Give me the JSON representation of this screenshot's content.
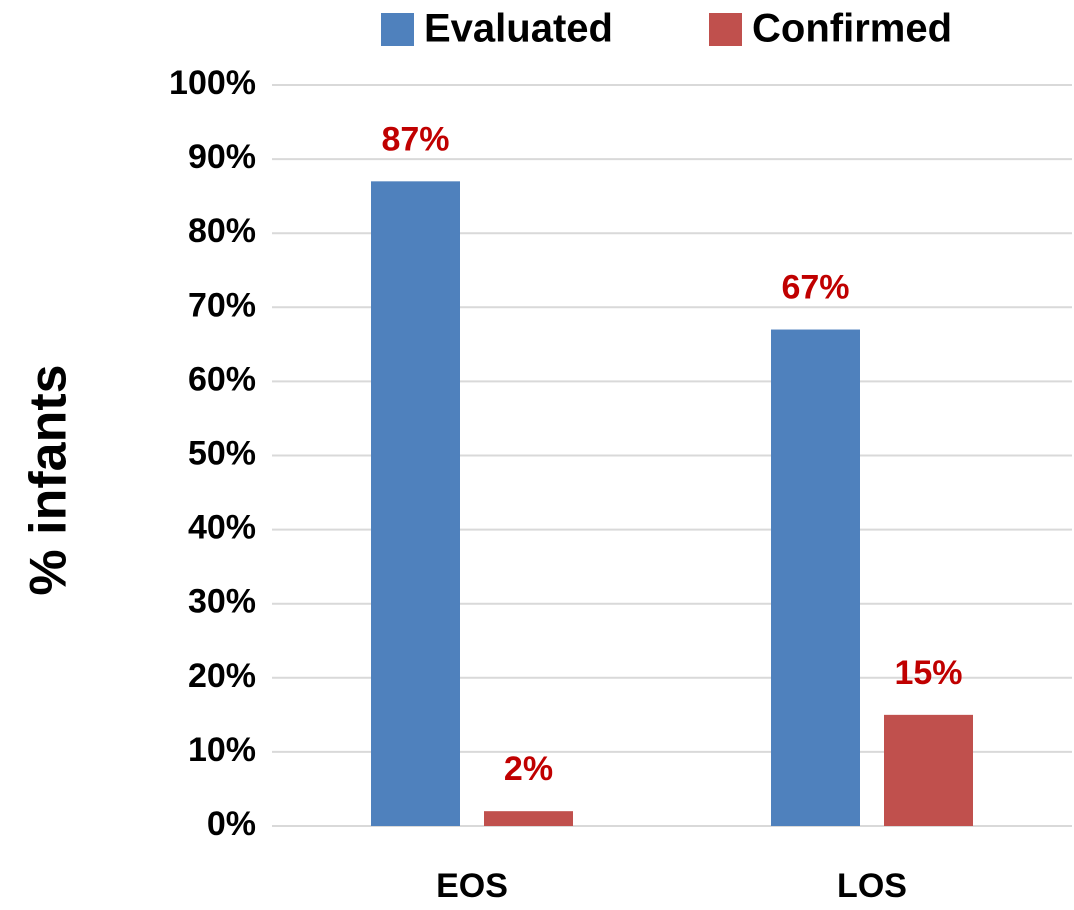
{
  "chart_data": {
    "type": "bar",
    "y_axis_label": "% infants",
    "categories": [
      "EOS",
      "LOS"
    ],
    "series": [
      {
        "name": "Evaluated",
        "color": "#4f81bd",
        "values": [
          87,
          67
        ],
        "value_labels": [
          "87%",
          "67%"
        ]
      },
      {
        "name": "Confirmed",
        "color": "#c0504d",
        "values": [
          2,
          15
        ],
        "value_labels": [
          "2%",
          "15%"
        ]
      }
    ],
    "value_label_color": "#c00000",
    "ylim": [
      0,
      100
    ],
    "yticks": [
      {
        "value": 0,
        "label": "0%"
      },
      {
        "value": 10,
        "label": "10%"
      },
      {
        "value": 20,
        "label": "20%"
      },
      {
        "value": 30,
        "label": "30%"
      },
      {
        "value": 40,
        "label": "40%"
      },
      {
        "value": 50,
        "label": "50%"
      },
      {
        "value": 60,
        "label": "60%"
      },
      {
        "value": 70,
        "label": "70%"
      },
      {
        "value": 80,
        "label": "80%"
      },
      {
        "value": 90,
        "label": "90%"
      },
      {
        "value": 100,
        "label": "100%"
      }
    ],
    "grid": true,
    "legend": "top"
  }
}
